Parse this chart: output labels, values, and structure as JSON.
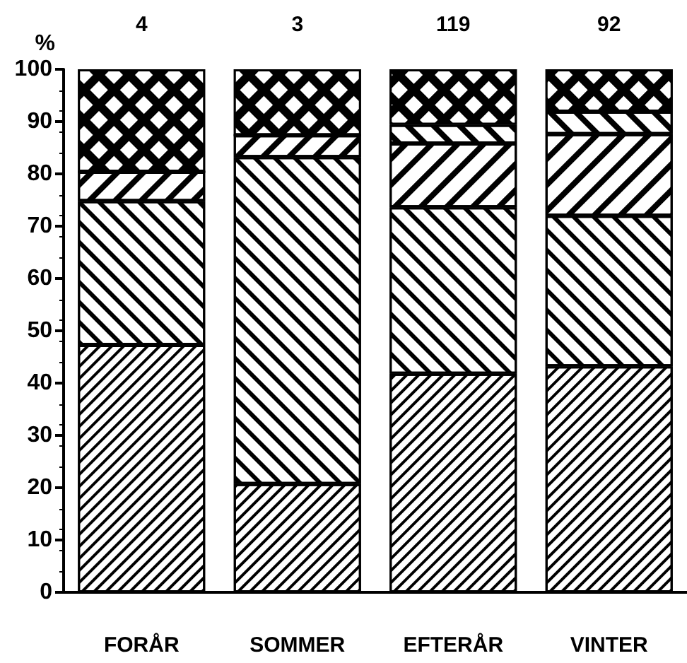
{
  "chart_data": {
    "type": "bar",
    "stacked": true,
    "ylabel": "%",
    "categories": [
      "FORÅR",
      "SOMMER",
      "EFTERÅR",
      "VINTER"
    ],
    "series": [
      {
        "color": "#000000",
        "values": [
          47.3,
          20.7,
          41.8,
          43.2
        ]
      },
      {
        "color": "#000000",
        "values": [
          27.5,
          62.5,
          31.8,
          28.8
        ]
      },
      {
        "color": "#000000",
        "values": [
          5.6,
          4.2,
          12.2,
          15.6
        ]
      },
      {
        "color": "#000000",
        "values": [
          0,
          0,
          3.6,
          4.3
        ]
      },
      {
        "color": "#000000",
        "values": [
          19.6,
          12.6,
          10.6,
          8.1
        ]
      }
    ],
    "ylim": [
      0,
      100
    ],
    "yticks": [
      0,
      10,
      20,
      30,
      40,
      50,
      60,
      70,
      80,
      90,
      100
    ],
    "annotations": [
      "4",
      "3",
      "119",
      "92"
    ],
    "grid": false
  }
}
